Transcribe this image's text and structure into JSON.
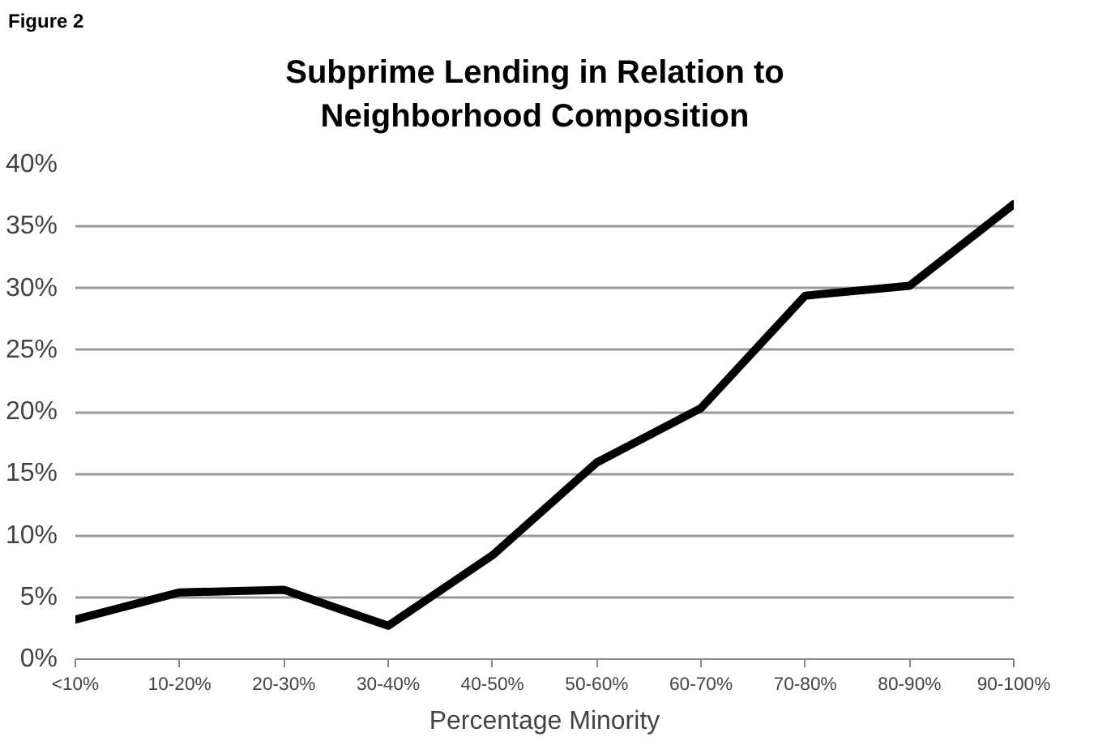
{
  "chart_data": {
    "type": "line",
    "title": "Subprime Lending in Relation to Neighborhood Composition",
    "xlabel": "Percentage Minority",
    "annotations": [
      "Figure 2"
    ],
    "categories": [
      "<10%",
      "10-20%",
      "20-30%",
      "30-40%",
      "40-50%",
      "50-60%",
      "60-70%",
      "70-80%",
      "80-90%",
      "90-100%"
    ],
    "series": [
      {
        "color": "#000000",
        "values": [
          3.2,
          5.4,
          5.6,
          2.7,
          8.4,
          15.9,
          20.3,
          29.4,
          30.2,
          36.8
        ]
      }
    ],
    "ylim": [
      0,
      40
    ],
    "yticks": [
      {
        "value": 0,
        "label": "0%"
      },
      {
        "value": 5,
        "label": "5%"
      },
      {
        "value": 10,
        "label": "10%"
      },
      {
        "value": 15,
        "label": "15%"
      },
      {
        "value": 20,
        "label": "20%"
      },
      {
        "value": 25,
        "label": "25%"
      },
      {
        "value": 30,
        "label": "30%"
      },
      {
        "value": 35,
        "label": "35%"
      },
      {
        "value": 40,
        "label": "40%"
      }
    ],
    "grid": "y",
    "marker": "none",
    "line_style": "solid"
  }
}
